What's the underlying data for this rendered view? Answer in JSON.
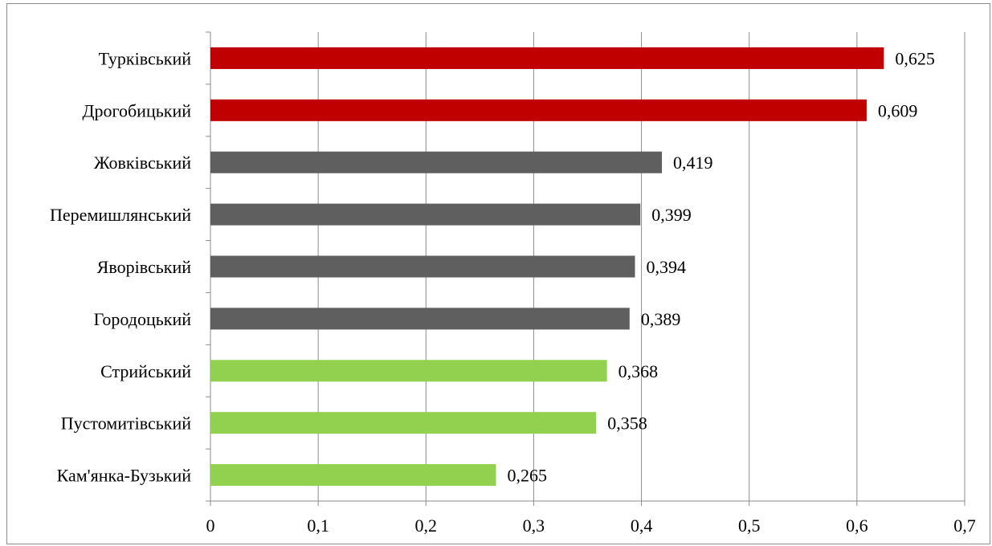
{
  "chart_data": {
    "type": "bar",
    "orientation": "horizontal",
    "categories": [
      "Турківський",
      "Дрогобицький",
      "Жовківський",
      "Перемишлянський",
      "Яворівський",
      "Городоцький",
      "Стрийський",
      "Пустомитівський",
      "Кам'янка-Бузький"
    ],
    "values": [
      0.625,
      0.609,
      0.419,
      0.399,
      0.394,
      0.389,
      0.368,
      0.358,
      0.265
    ],
    "value_labels": [
      "0,625",
      "0,609",
      "0,419",
      "0,399",
      "0,394",
      "0,389",
      "0,368",
      "0,358",
      "0,265"
    ],
    "bar_colors": [
      "#c00000",
      "#c00000",
      "#5f5f5f",
      "#5f5f5f",
      "#5f5f5f",
      "#5f5f5f",
      "#92d050",
      "#92d050",
      "#92d050"
    ],
    "xlim": [
      0,
      0.7
    ],
    "x_ticks": [
      0,
      0.1,
      0.2,
      0.3,
      0.4,
      0.5,
      0.6,
      0.7
    ],
    "x_tick_labels": [
      "0",
      "0,1",
      "0,2",
      "0,3",
      "0,4",
      "0,5",
      "0,6",
      "0,7"
    ],
    "grid": "vertical",
    "legend": "none",
    "title": "",
    "xlabel": "",
    "ylabel": ""
  }
}
